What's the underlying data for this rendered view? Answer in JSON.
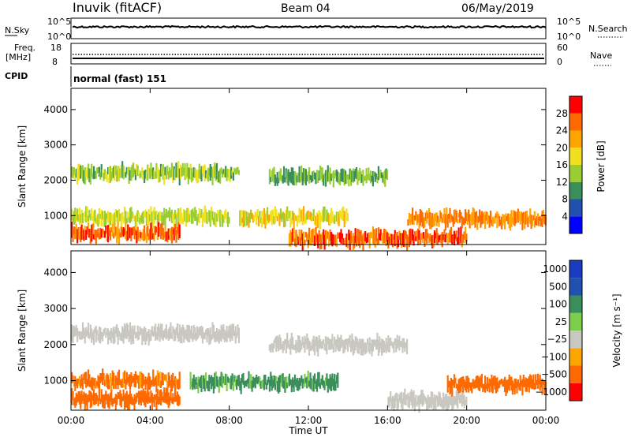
{
  "header": {
    "station": "Inuvik (fitACF)",
    "beam": "Beam 04",
    "date": "06/May/2019"
  },
  "panels": {
    "nsky": {
      "left_label": "N.Sky",
      "ytick_top": "10^5",
      "ytick_bottom": "10^0",
      "right_label": "N.Search",
      "rtick_top": "10^5",
      "rtick_bottom": "10^0"
    },
    "freq": {
      "left_label_line1": "Freq.",
      "left_label_line2": "[MHz]",
      "ytick_top": "18",
      "ytick_bottom": "8",
      "right_label": "Nave",
      "rtick_top": "60",
      "rtick_bottom": "0"
    },
    "cpid": {
      "label": "CPID",
      "value": "normal (fast) 151"
    }
  },
  "colors": {
    "power": [
      "#0000ff",
      "#2050b0",
      "#3a8e5a",
      "#9acd32",
      "#f0e020",
      "#ffa500",
      "#ff6a00",
      "#ff0000"
    ],
    "velocity": [
      "#ff0000",
      "#ff6a00",
      "#ffa500",
      "#c8c8c0",
      "#7ccd4a",
      "#3a8e5a",
      "#2050b0",
      "#1a3cc0"
    ]
  },
  "chart_data": [
    {
      "type": "heatmap",
      "title": "Power [dB]",
      "xlabel": "",
      "ylabel": "Slant Range [km]",
      "x_ticks": [
        "00:00",
        "04:00",
        "08:00",
        "12:00",
        "16:00",
        "20:00",
        "00:00"
      ],
      "y_ticks": [
        "1000",
        "2000",
        "3000",
        "4000"
      ],
      "ylim": [
        180,
        4600
      ],
      "colorbar": {
        "label": "Power [dB]",
        "ticks": [
          "4",
          "8",
          "12",
          "16",
          "20",
          "24",
          "28"
        ],
        "range": [
          0,
          30
        ]
      },
      "echo_bands": [
        {
          "start_h": 0.0,
          "end_h": 8.5,
          "range_km": 2200,
          "value": 14
        },
        {
          "start_h": 10.0,
          "end_h": 16.0,
          "range_km": 2100,
          "value": 12
        },
        {
          "start_h": 0.0,
          "end_h": 8.0,
          "range_km": 950,
          "value": 16
        },
        {
          "start_h": 8.5,
          "end_h": 14.0,
          "range_km": 950,
          "value": 18
        },
        {
          "start_h": 0.0,
          "end_h": 5.5,
          "range_km": 500,
          "value": 26
        },
        {
          "start_h": 11.0,
          "end_h": 20.0,
          "range_km": 350,
          "value": 26
        },
        {
          "start_h": 17.0,
          "end_h": 24.0,
          "range_km": 900,
          "value": 24
        }
      ]
    },
    {
      "type": "heatmap",
      "title": "Velocity [m s^-1]",
      "xlabel": "Time UT",
      "ylabel": "Slant Range [km]",
      "x_ticks": [
        "00:00",
        "04:00",
        "08:00",
        "12:00",
        "16:00",
        "20:00",
        "00:00"
      ],
      "y_ticks": [
        "1000",
        "2000",
        "3000",
        "4000"
      ],
      "ylim": [
        180,
        4600
      ],
      "colorbar": {
        "label": "Velocity [m s⁻¹]",
        "ticks": [
          "1000",
          "500",
          "100",
          "25",
          "−25",
          "−100",
          "−500",
          "−1000"
        ]
      },
      "echo_bands": [
        {
          "start_h": 0.0,
          "end_h": 8.5,
          "range_km": 2300,
          "value": 0
        },
        {
          "start_h": 10.0,
          "end_h": 17.0,
          "range_km": 2000,
          "value": 0
        },
        {
          "start_h": 0.0,
          "end_h": 5.5,
          "range_km": 1000,
          "value": -150
        },
        {
          "start_h": 6.0,
          "end_h": 13.5,
          "range_km": 950,
          "value": 150
        },
        {
          "start_h": 0.0,
          "end_h": 5.5,
          "range_km": 500,
          "value": -300
        },
        {
          "start_h": 16.0,
          "end_h": 20.0,
          "range_km": 450,
          "value": 0
        },
        {
          "start_h": 19.0,
          "end_h": 24.0,
          "range_km": 900,
          "value": -200
        }
      ]
    }
  ]
}
